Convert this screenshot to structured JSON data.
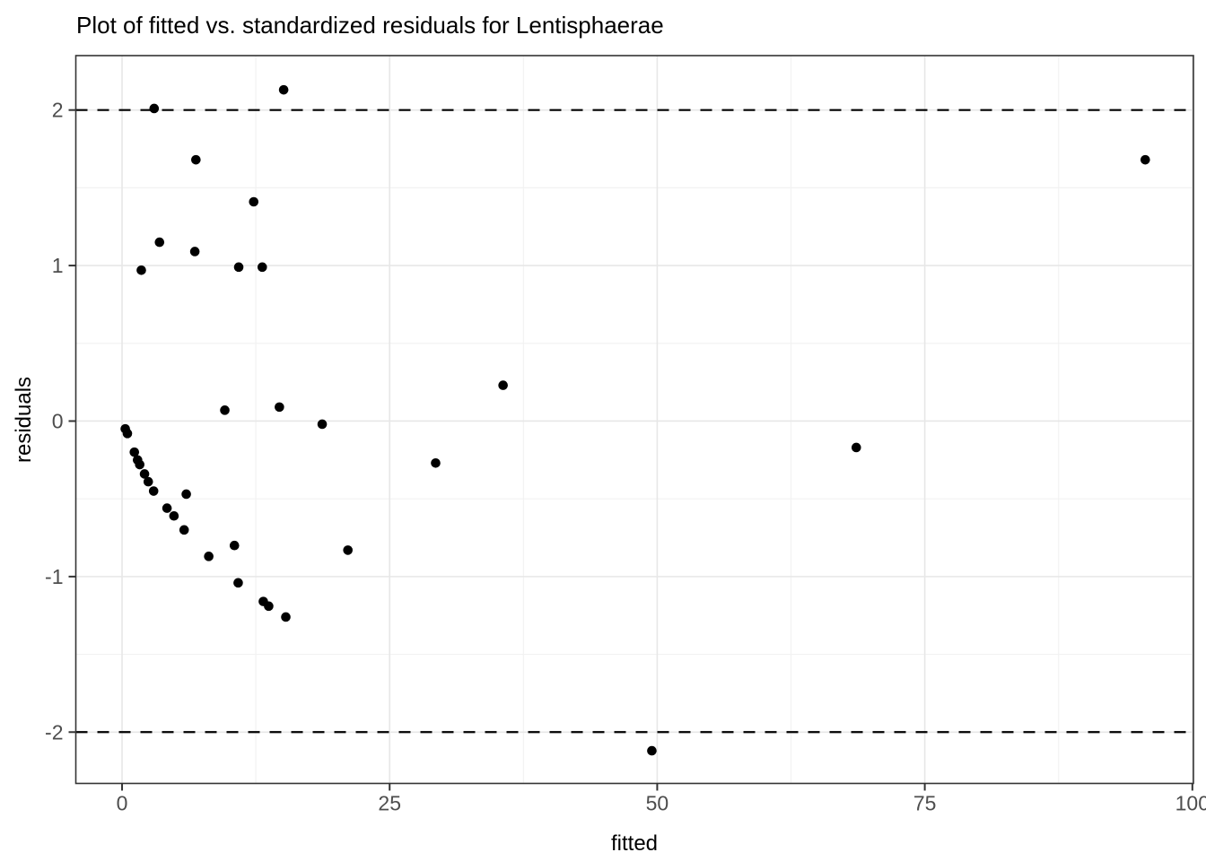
{
  "chart_data": {
    "type": "scatter",
    "title": "Plot of fitted vs. standardized residuals for Lentisphaerae",
    "xlabel": "fitted",
    "ylabel": "residuals",
    "xlim": [
      -4.32,
      100.1
    ],
    "ylim": [
      -2.33,
      2.35
    ],
    "x_ticks": {
      "values": [
        0,
        25,
        50,
        75,
        100
      ],
      "labels": [
        "0",
        "25",
        "50",
        "75",
        "100"
      ]
    },
    "y_ticks": {
      "values": [
        -2,
        -1,
        0,
        1,
        2
      ],
      "labels": [
        "-2",
        "-1",
        "0",
        "1",
        "2"
      ]
    },
    "x_minor_ticks": [
      12.5,
      37.5,
      62.5,
      87.5
    ],
    "y_minor_ticks": [
      -1.5,
      -0.5,
      0.5,
      1.5
    ],
    "grid": true,
    "legend": false,
    "reference_lines": [
      {
        "y": 2,
        "style": "dashed"
      },
      {
        "y": -2,
        "style": "dashed"
      }
    ],
    "points": [
      [
        15.1,
        2.13
      ],
      [
        3.0,
        2.01
      ],
      [
        6.9,
        1.68
      ],
      [
        95.6,
        1.68
      ],
      [
        12.3,
        1.41
      ],
      [
        3.5,
        1.15
      ],
      [
        6.8,
        1.09
      ],
      [
        1.8,
        0.97
      ],
      [
        10.9,
        0.99
      ],
      [
        13.1,
        0.99
      ],
      [
        9.6,
        0.07
      ],
      [
        14.7,
        0.09
      ],
      [
        35.6,
        0.23
      ],
      [
        18.7,
        -0.02
      ],
      [
        68.6,
        -0.17
      ],
      [
        29.3,
        -0.27
      ],
      [
        0.3,
        -0.05
      ],
      [
        0.5,
        -0.08
      ],
      [
        1.15,
        -0.2
      ],
      [
        1.45,
        -0.25
      ],
      [
        1.65,
        -0.28
      ],
      [
        2.1,
        -0.34
      ],
      [
        2.45,
        -0.39
      ],
      [
        2.95,
        -0.45
      ],
      [
        6.0,
        -0.47
      ],
      [
        4.2,
        -0.56
      ],
      [
        4.85,
        -0.61
      ],
      [
        5.8,
        -0.7
      ],
      [
        10.5,
        -0.8
      ],
      [
        8.1,
        -0.87
      ],
      [
        21.1,
        -0.83
      ],
      [
        10.85,
        -1.04
      ],
      [
        13.2,
        -1.16
      ],
      [
        13.7,
        -1.19
      ],
      [
        15.3,
        -1.26
      ],
      [
        49.5,
        -2.12
      ]
    ],
    "colors": {
      "point": "#000000",
      "reference_line": "#000000",
      "grid_major": "#e7e7e7",
      "grid_minor": "#f2f2f2",
      "panel_border": "#343434",
      "tick_mark": "#333333",
      "tick_label": "#4d4d4d",
      "background": "#ffffff"
    }
  }
}
